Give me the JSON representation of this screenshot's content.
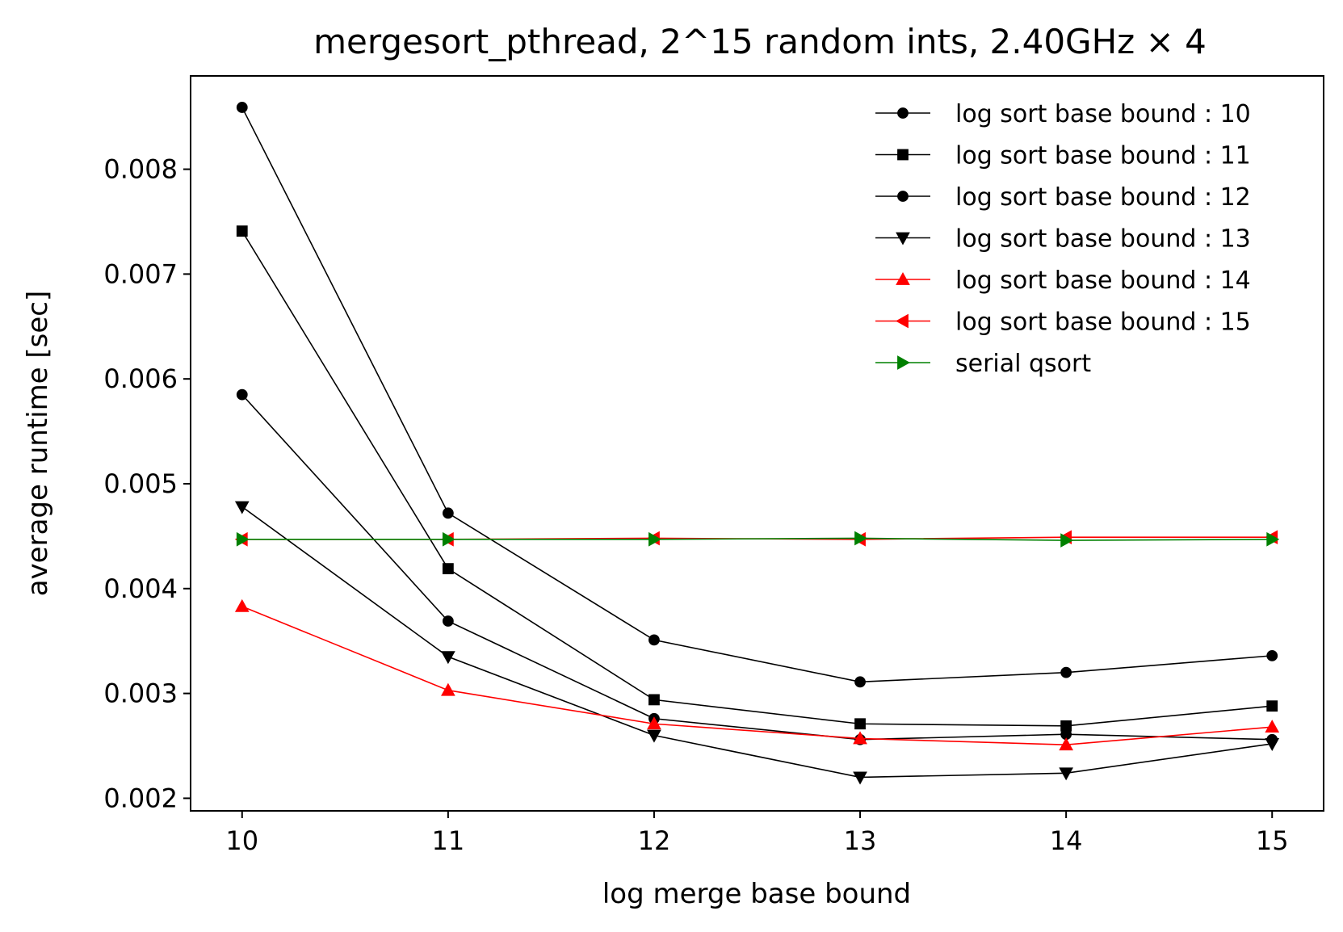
{
  "chart_data": {
    "type": "line",
    "title": "mergesort_pthread, 2^15 random ints, 2.40GHz × 4",
    "xlabel": "log merge base bound",
    "ylabel": "average runtime [sec]",
    "x": [
      10,
      11,
      12,
      13,
      14,
      15
    ],
    "x_ticks": [
      "10",
      "11",
      "12",
      "13",
      "14",
      "15"
    ],
    "xlim": [
      9.75,
      15.25
    ],
    "y_ticks": [
      "0.002",
      "0.003",
      "0.004",
      "0.005",
      "0.006",
      "0.007",
      "0.008"
    ],
    "y_tick_values": [
      0.002,
      0.003,
      0.004,
      0.005,
      0.006,
      0.007,
      0.008
    ],
    "ylim": [
      0.00188,
      0.00889
    ],
    "grid": false,
    "legend_position": "top-right",
    "series": [
      {
        "name": "log sort base bound : 10",
        "color": "#000000",
        "marker": "circle",
        "values": [
          0.00859,
          0.00472,
          0.00351,
          0.00311,
          0.0032,
          0.00336
        ]
      },
      {
        "name": "log sort base bound : 11",
        "color": "#000000",
        "marker": "square",
        "values": [
          0.00741,
          0.00419,
          0.00294,
          0.00271,
          0.00269,
          0.00288
        ]
      },
      {
        "name": "log sort base bound : 12",
        "color": "#000000",
        "marker": "circle",
        "values": [
          0.00585,
          0.00369,
          0.00276,
          0.00256,
          0.00261,
          0.00256
        ]
      },
      {
        "name": "log sort base bound : 13",
        "color": "#000000",
        "marker": "triangle-down",
        "values": [
          0.00478,
          0.00335,
          0.0026,
          0.0022,
          0.00224,
          0.00252
        ]
      },
      {
        "name": "log sort base bound : 14",
        "color": "#ff0000",
        "marker": "triangle-up",
        "values": [
          0.00383,
          0.00303,
          0.00271,
          0.00257,
          0.00251,
          0.00268
        ]
      },
      {
        "name": "log sort base bound : 15",
        "color": "#ff0000",
        "marker": "triangle-left",
        "values": [
          0.00447,
          0.00447,
          0.00448,
          0.00447,
          0.00449,
          0.00449
        ]
      },
      {
        "name": "serial qsort",
        "color": "#008000",
        "marker": "triangle-right",
        "values": [
          0.00447,
          0.00447,
          0.00447,
          0.00448,
          0.00446,
          0.00447
        ]
      }
    ]
  }
}
